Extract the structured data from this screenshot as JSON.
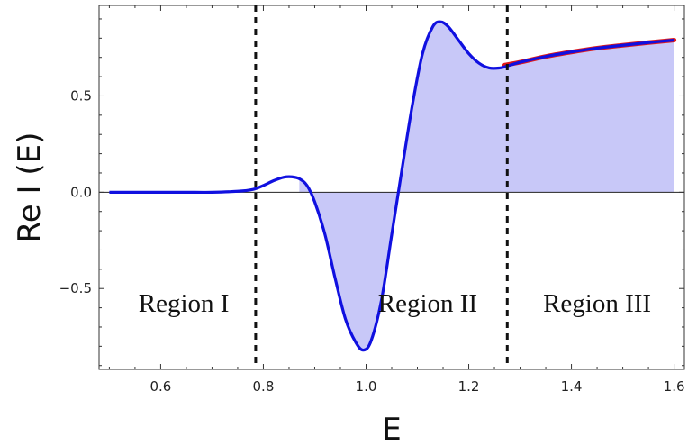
{
  "chart_data": {
    "type": "area",
    "xlabel": "E",
    "ylabel": "Re I (E)",
    "xlim": [
      0.48,
      1.62
    ],
    "ylim": [
      -0.92,
      0.97
    ],
    "x_ticks": [
      0.6,
      0.8,
      1.0,
      1.2,
      1.4,
      1.6
    ],
    "x_tick_labels": [
      "0.6",
      "0.8",
      "1.0",
      "1.2",
      "1.4",
      "1.6"
    ],
    "y_ticks": [
      -0.5,
      0.0,
      0.5
    ],
    "y_tick_labels": [
      "−0.5",
      "0.0",
      "0.5"
    ],
    "grid": false,
    "colors": {
      "curve": "#1010e0",
      "fill": "#c8c8f8",
      "overlay": "#e01818",
      "divider": "#111111"
    },
    "series": [
      {
        "role": "main-curve",
        "x": [
          0.5,
          0.55,
          0.6,
          0.65,
          0.7,
          0.75,
          0.78,
          0.8,
          0.82,
          0.84,
          0.855,
          0.87,
          0.885,
          0.9,
          0.92,
          0.94,
          0.96,
          0.98,
          0.995,
          1.01,
          1.03,
          1.05,
          1.07,
          1.09,
          1.11,
          1.13,
          1.145,
          1.16,
          1.18,
          1.2,
          1.22,
          1.24,
          1.26,
          1.275,
          1.3,
          1.35,
          1.4,
          1.45,
          1.5,
          1.55,
          1.6
        ],
        "y": [
          0.0,
          0.0,
          0.0,
          0.0,
          0.0,
          0.005,
          0.015,
          0.035,
          0.06,
          0.078,
          0.08,
          0.07,
          0.035,
          -0.05,
          -0.22,
          -0.45,
          -0.66,
          -0.78,
          -0.82,
          -0.77,
          -0.56,
          -0.22,
          0.12,
          0.45,
          0.72,
          0.86,
          0.885,
          0.86,
          0.79,
          0.72,
          0.67,
          0.645,
          0.645,
          0.655,
          0.675,
          0.705,
          0.728,
          0.748,
          0.763,
          0.777,
          0.79
        ]
      },
      {
        "role": "asymptotic-overlay",
        "x": [
          1.27,
          1.3,
          1.35,
          1.4,
          1.45,
          1.5,
          1.55,
          1.6
        ],
        "y": [
          0.66,
          0.675,
          0.705,
          0.728,
          0.748,
          0.763,
          0.777,
          0.79
        ]
      }
    ],
    "fill_range": [
      0.87,
      1.6
    ],
    "dividers": [
      0.785,
      1.275
    ],
    "regions": [
      {
        "label": "Region I",
        "x": 0.645,
        "y": -0.62
      },
      {
        "label": "Region II",
        "x": 1.12,
        "y": -0.62
      },
      {
        "label": "Region III",
        "x": 1.45,
        "y": -0.62
      }
    ]
  }
}
